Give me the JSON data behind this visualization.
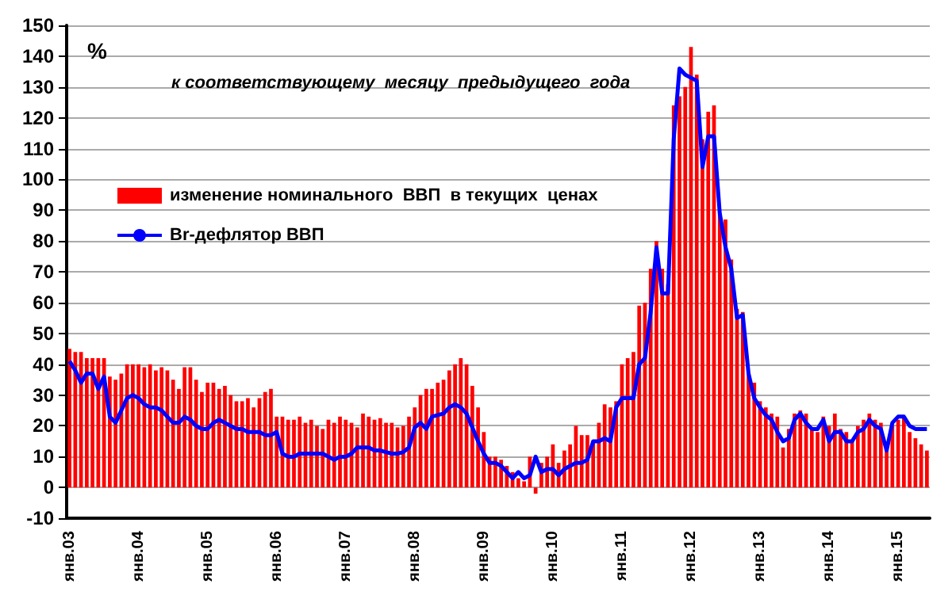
{
  "chart_data": {
    "type": "bar",
    "subtitle": "к соответствующему  месяцу  предыдущего  года",
    "ylabel": "%",
    "categories": [
      "янв.03",
      null,
      null,
      null,
      null,
      null,
      null,
      null,
      null,
      null,
      null,
      null,
      "янв.04",
      null,
      null,
      null,
      null,
      null,
      null,
      null,
      null,
      null,
      null,
      null,
      "янв.05",
      null,
      null,
      null,
      null,
      null,
      null,
      null,
      null,
      null,
      null,
      null,
      "янв.06",
      null,
      null,
      null,
      null,
      null,
      null,
      null,
      null,
      null,
      null,
      null,
      "янв.07",
      null,
      null,
      null,
      null,
      null,
      null,
      null,
      null,
      null,
      null,
      null,
      "янв.08",
      null,
      null,
      null,
      null,
      null,
      null,
      null,
      null,
      null,
      null,
      null,
      "янв.09",
      null,
      null,
      null,
      null,
      null,
      null,
      null,
      null,
      null,
      null,
      null,
      "янв.10",
      null,
      null,
      null,
      null,
      null,
      null,
      null,
      null,
      null,
      null,
      null,
      "янв.11",
      null,
      null,
      null,
      null,
      null,
      null,
      null,
      null,
      null,
      null,
      null,
      "янв.12",
      null,
      null,
      null,
      null,
      null,
      null,
      null,
      null,
      null,
      null,
      null,
      "янв.13",
      null,
      null,
      null,
      null,
      null,
      null,
      null,
      null,
      null,
      null,
      null,
      "янв.14",
      null,
      null,
      null,
      null,
      null,
      null,
      null,
      null,
      null,
      null,
      null,
      "янв.15",
      null,
      null,
      null,
      null,
      null
    ],
    "series": [
      {
        "name": "изменение номинального  ВВП  в текущих  ценах",
        "color": "#ff0000",
        "values": [
          45,
          44,
          44,
          42,
          42,
          42,
          42,
          36,
          35,
          37,
          40,
          40,
          40,
          39,
          40,
          38,
          39,
          38,
          35,
          32,
          39,
          39,
          35,
          31,
          34,
          34,
          32,
          33,
          30,
          28,
          28,
          29,
          26,
          29,
          31,
          32,
          23,
          23,
          22,
          22,
          23,
          21,
          22,
          20,
          19,
          22,
          21,
          23,
          22,
          21,
          19.5,
          24,
          23,
          22,
          22.5,
          21,
          21,
          19.5,
          20,
          23,
          26,
          30,
          32,
          32,
          34,
          35,
          38,
          40,
          42,
          40,
          33,
          26,
          18,
          10,
          10,
          9,
          7,
          5,
          3,
          2,
          10,
          -2,
          8,
          10,
          14,
          8,
          12,
          14,
          20,
          17,
          17,
          15,
          21,
          27,
          26,
          28,
          40,
          42,
          44,
          59,
          60,
          71,
          80,
          71,
          66,
          124,
          127,
          130,
          143,
          134,
          113,
          122,
          124,
          89,
          87,
          74,
          58,
          57,
          37,
          34,
          28,
          26,
          24,
          23,
          13,
          19,
          24,
          25,
          24,
          19,
          18,
          23,
          20,
          24,
          19,
          18,
          15,
          20,
          22,
          24,
          22,
          21,
          13,
          20,
          22,
          23,
          18,
          16,
          14,
          12
        ]
      },
      {
        "name": "Вr-дефлятор ВВП",
        "type": "line",
        "color": "#0000ff",
        "values": [
          41,
          38,
          34,
          37,
          37,
          32,
          36,
          23,
          21,
          25,
          29,
          30,
          29,
          27,
          26,
          26,
          25,
          23,
          21,
          21,
          23,
          22,
          20,
          19,
          19,
          21,
          22,
          21,
          20,
          19,
          19,
          18,
          18,
          18,
          17,
          17,
          18,
          11,
          10,
          10,
          11,
          11,
          11,
          11,
          11,
          10,
          9,
          10,
          10,
          11,
          13,
          13,
          13,
          12,
          12,
          11.5,
          11,
          11,
          11.5,
          13,
          19.5,
          21,
          19,
          23,
          23.5,
          24,
          26,
          27,
          26,
          24,
          19.5,
          15,
          11,
          8,
          8,
          7,
          5,
          3,
          5,
          3,
          4,
          10,
          5,
          6,
          6,
          4,
          6,
          7,
          8,
          8,
          9,
          15,
          15,
          16,
          15,
          26,
          29,
          29,
          29,
          40,
          42,
          57,
          78,
          63,
          63,
          113,
          136,
          134,
          133,
          132,
          104,
          114,
          114,
          89,
          78,
          71,
          55,
          56,
          37,
          29,
          26,
          23.5,
          22,
          18,
          15,
          16,
          22,
          24,
          21,
          19,
          19,
          22,
          15,
          18,
          18,
          15,
          15,
          18,
          19,
          22,
          20,
          19,
          12,
          21,
          23,
          23,
          20,
          19,
          19,
          19
        ]
      }
    ],
    "ylim": [
      -10,
      150
    ],
    "yticks": [
      -10,
      0,
      10,
      20,
      30,
      40,
      50,
      60,
      70,
      80,
      90,
      100,
      110,
      120,
      130,
      140,
      150
    ],
    "grid": "y",
    "legend": "top left",
    "marker": "none",
    "line_style": "solid"
  }
}
